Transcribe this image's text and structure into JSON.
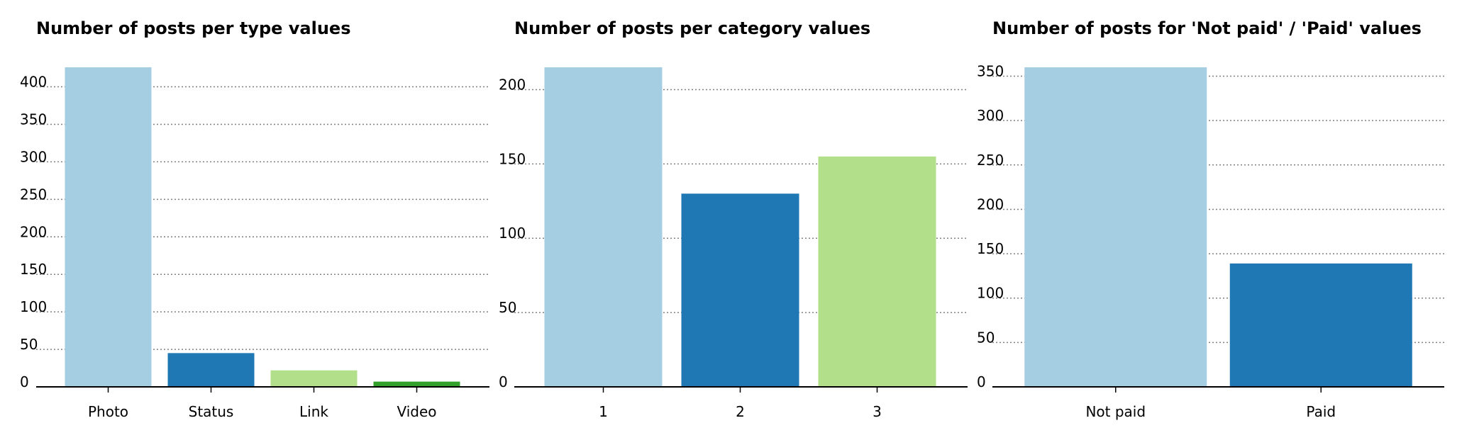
{
  "chart_data": [
    {
      "type": "bar",
      "title": "Number of posts per type values",
      "xlabel": "",
      "ylabel": "",
      "categories": [
        "Photo",
        "Status",
        "Link",
        "Video"
      ],
      "values": [
        426,
        45,
        22,
        7
      ],
      "colors": [
        "#a6cee3",
        "#1f78b4",
        "#b2df8a",
        "#33a02c"
      ],
      "ylim": [
        0,
        426
      ],
      "yticks": [
        0,
        50,
        100,
        150,
        200,
        250,
        300,
        350,
        400
      ],
      "grid": "horizontal dotted"
    },
    {
      "type": "bar",
      "title": "Number of posts per category values",
      "xlabel": "",
      "ylabel": "",
      "categories": [
        "1",
        "2",
        "3"
      ],
      "values": [
        215,
        130,
        155
      ],
      "colors": [
        "#a6cee3",
        "#1f78b4",
        "#b2df8a"
      ],
      "ylim": [
        0,
        215
      ],
      "yticks": [
        0,
        50,
        100,
        150,
        200
      ],
      "grid": "horizontal dotted"
    },
    {
      "type": "bar",
      "title": "Number of posts for 'Not paid' / 'Paid' values",
      "xlabel": "",
      "ylabel": "",
      "categories": [
        "Not paid",
        "Paid"
      ],
      "values": [
        360,
        139
      ],
      "colors": [
        "#a6cee3",
        "#1f78b4"
      ],
      "ylim": [
        0,
        360
      ],
      "yticks": [
        0,
        50,
        100,
        150,
        200,
        250,
        300,
        350
      ],
      "grid": "horizontal dotted"
    }
  ]
}
